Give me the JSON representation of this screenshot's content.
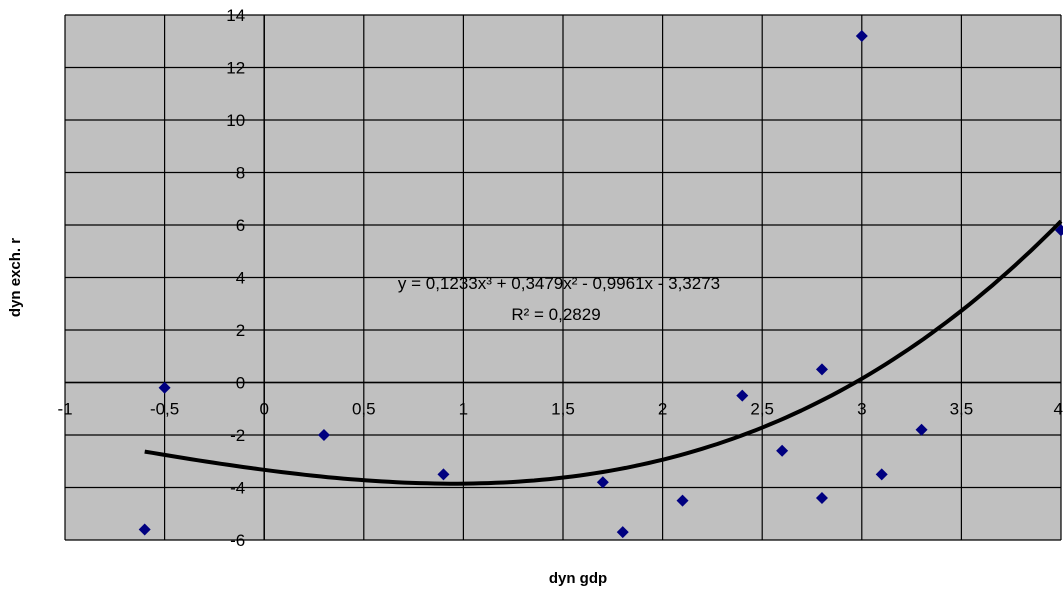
{
  "chart_data": {
    "type": "scatter",
    "xlabel": "dyn gdp",
    "ylabel": "dyn exch. r",
    "xlim": [
      -1,
      4
    ],
    "ylim": [
      -6,
      14
    ],
    "x_ticks": [
      "-1",
      "-0,5",
      "0",
      "0,5",
      "1",
      "1,5",
      "2",
      "2,5",
      "3",
      "3,5",
      "4"
    ],
    "y_ticks": [
      "-6",
      "-4",
      "-2",
      "0",
      "2",
      "4",
      "6",
      "8",
      "10",
      "12",
      "14"
    ],
    "grid": true,
    "plot_background": "#c0c0c0",
    "marker_color": "#000080",
    "line_color": "#000000",
    "points": [
      {
        "x": -0.6,
        "y": -5.6
      },
      {
        "x": -0.5,
        "y": -0.2
      },
      {
        "x": 0.3,
        "y": -2.0
      },
      {
        "x": 0.9,
        "y": -3.5
      },
      {
        "x": 1.7,
        "y": -3.8
      },
      {
        "x": 1.8,
        "y": -5.7
      },
      {
        "x": 2.1,
        "y": -4.5
      },
      {
        "x": 2.4,
        "y": -0.5
      },
      {
        "x": 2.6,
        "y": -2.6
      },
      {
        "x": 2.8,
        "y": 0.5
      },
      {
        "x": 2.8,
        "y": -4.4
      },
      {
        "x": 3.0,
        "y": 13.2
      },
      {
        "x": 3.1,
        "y": -3.5
      },
      {
        "x": 3.3,
        "y": -1.8
      },
      {
        "x": 4.0,
        "y": 5.8
      }
    ],
    "trendline": {
      "type": "polynomial",
      "coefficients": [
        0.1233,
        0.3479,
        -0.9961,
        -3.3273
      ],
      "x_range": [
        -0.6,
        4.0
      ],
      "equation": "y = 0,1233x³ + 0,3479x² - 0,9961x - 3,3273",
      "r_squared": "R² = 0,2829"
    }
  }
}
